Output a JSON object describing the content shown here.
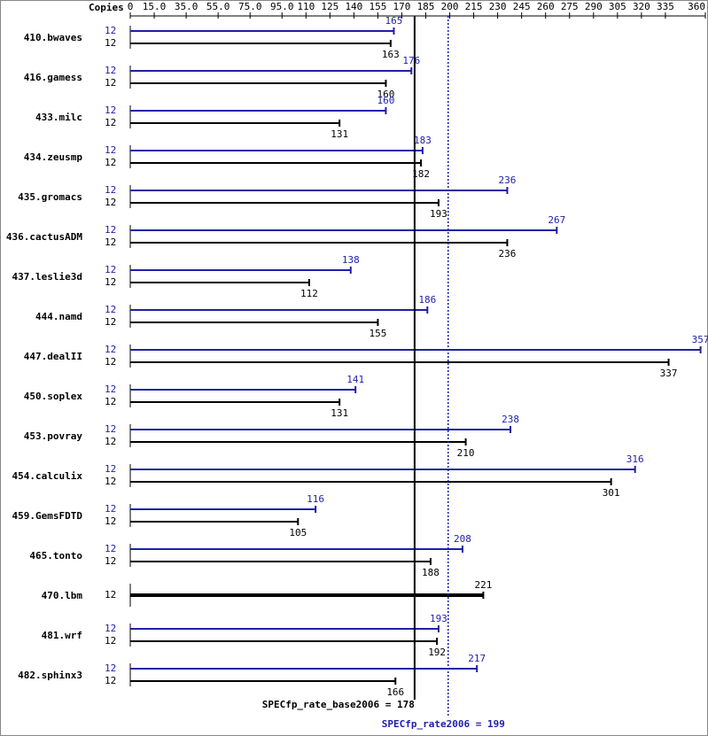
{
  "chart_data": {
    "type": "bar",
    "orientation": "horizontal",
    "copies_header": "Copies",
    "categories": [
      "410.bwaves",
      "416.gamess",
      "433.milc",
      "434.zeusmp",
      "435.gromacs",
      "436.cactusADM",
      "437.leslie3d",
      "444.namd",
      "447.dealII",
      "450.soplex",
      "453.povray",
      "454.calculix",
      "459.GemsFDTD",
      "465.tonto",
      "470.lbm",
      "481.wrf",
      "482.sphinx3"
    ],
    "series": [
      {
        "color": "#1f1fa8",
        "copies": [
          12,
          12,
          12,
          12,
          12,
          12,
          12,
          12,
          12,
          12,
          12,
          12,
          12,
          12,
          null,
          12,
          12
        ],
        "values": [
          165,
          176,
          160,
          183,
          236,
          267,
          138,
          186,
          357,
          141,
          238,
          316,
          116,
          208,
          null,
          193,
          217
        ]
      },
      {
        "color": "#000000",
        "copies": [
          12,
          12,
          12,
          12,
          12,
          12,
          12,
          12,
          12,
          12,
          12,
          12,
          12,
          12,
          12,
          12,
          12
        ],
        "values": [
          163,
          160,
          131,
          182,
          193,
          236,
          112,
          155,
          337,
          131,
          210,
          301,
          105,
          188,
          221,
          192,
          166
        ]
      }
    ],
    "xlim": [
      0,
      360
    ],
    "xticks": [
      0,
      {
        "value": 15,
        "label": "15.0"
      },
      {
        "value": 35,
        "label": "35.0"
      },
      {
        "value": 55,
        "label": "55.0"
      },
      {
        "value": 75,
        "label": "75.0"
      },
      {
        "value": 95,
        "label": "95.0"
      },
      110,
      125,
      140,
      155,
      170,
      185,
      200,
      215,
      230,
      245,
      260,
      275,
      290,
      305,
      320,
      335,
      360
    ],
    "reference_lines": [
      {
        "label": "SPECfp_rate_base2006 = 178",
        "value": 178,
        "color": "#000000",
        "style": "solid"
      },
      {
        "label": "SPECfp_rate2006 = 199",
        "value": 199,
        "color": "#1f1fa8",
        "style": "dotted"
      }
    ]
  }
}
